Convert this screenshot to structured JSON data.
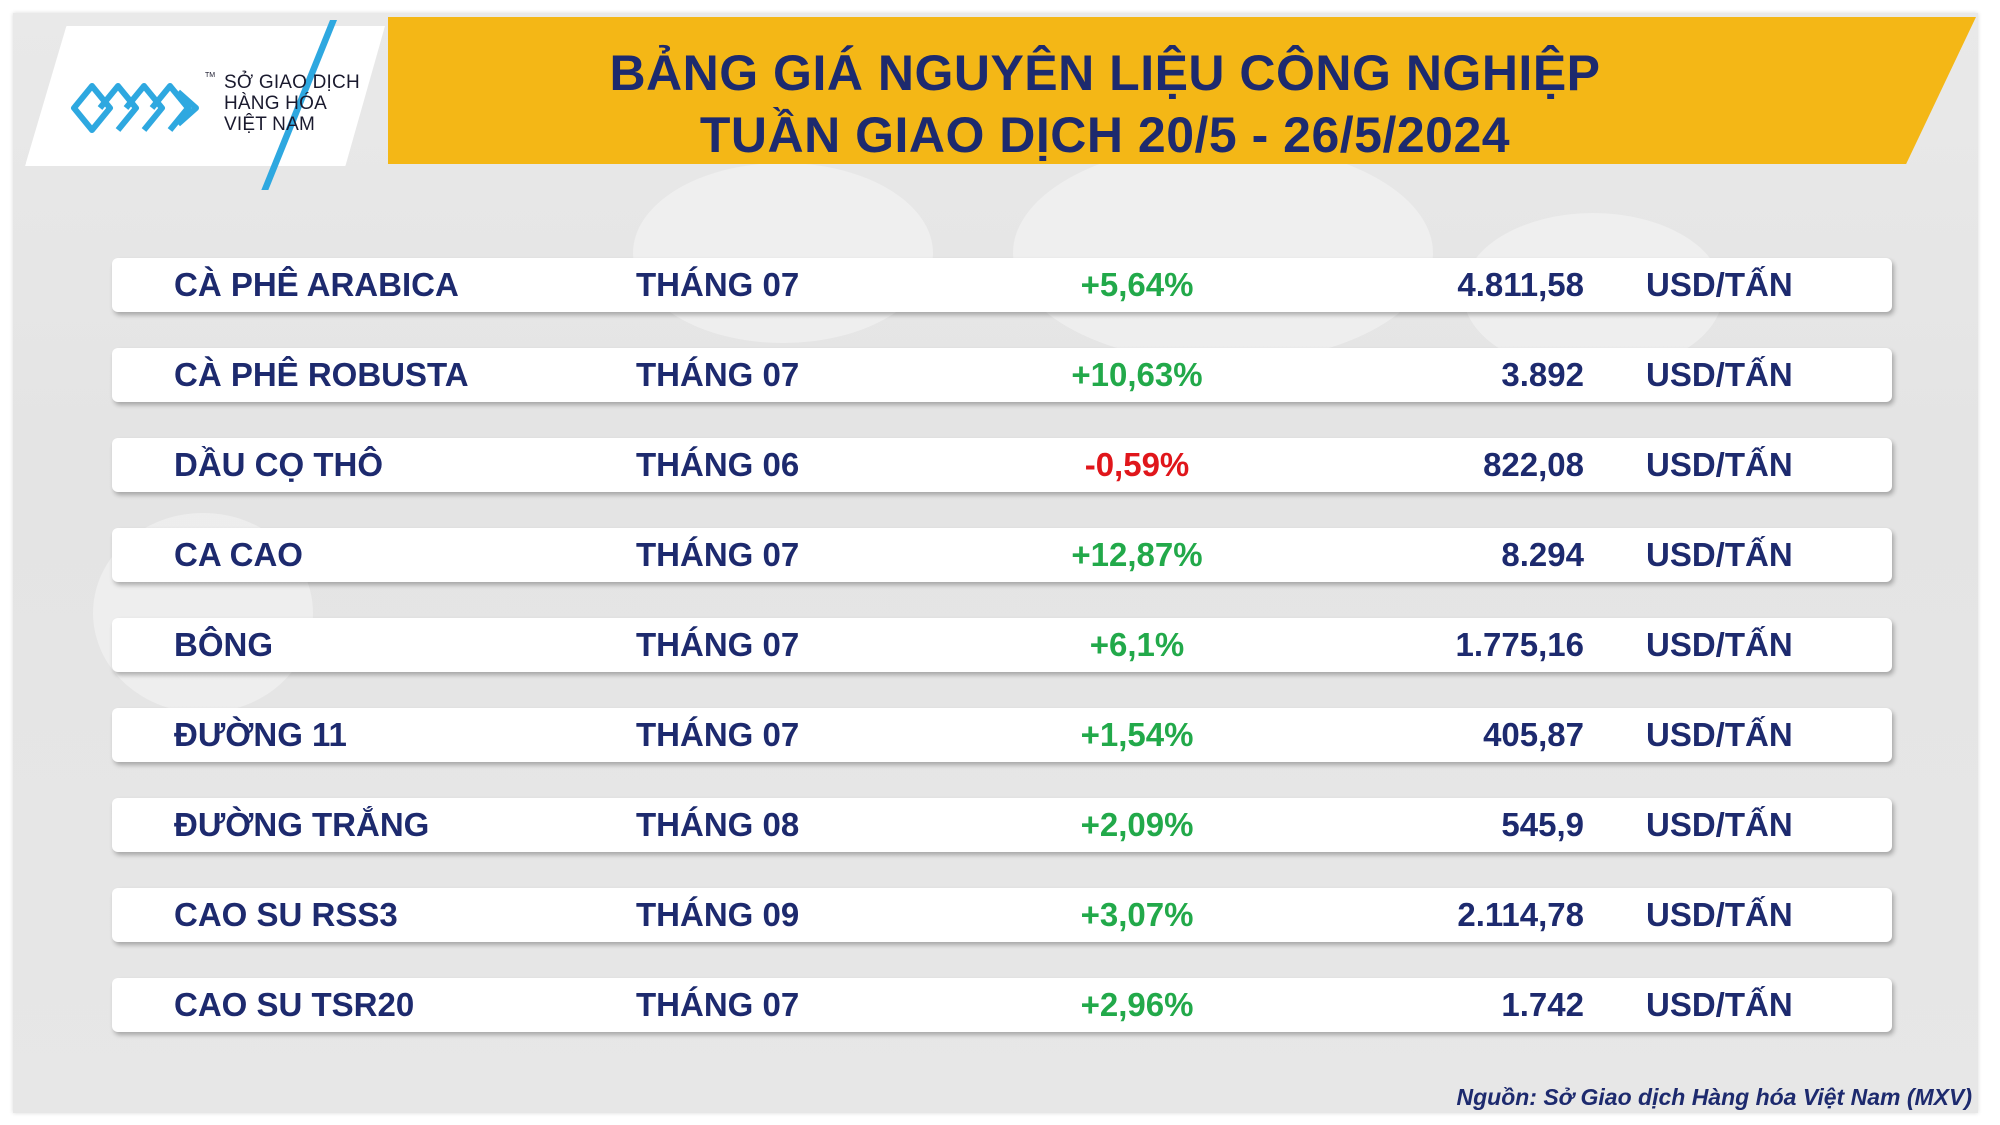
{
  "brand": {
    "logo_lines": [
      "SỞ GIAO DỊCH",
      "HÀNG HÓA",
      "VIỆT NAM"
    ],
    "trademark": "TM",
    "accent_color": "#2ea8e0"
  },
  "header": {
    "title_line1": "BẢNG GIÁ NGUYÊN LIỆU CÔNG NGHIỆP",
    "title_line2": "TUẦN GIAO DỊCH 20/5 - 26/5/2024",
    "banner_color": "#f4b716",
    "title_color": "#1d2a6e"
  },
  "table": {
    "rows": [
      {
        "commodity": "CÀ PHÊ ARABICA",
        "contract": "THÁNG 07",
        "change": "+5,64%",
        "direction": "up",
        "price": "4.811,58",
        "unit": "USD/TẤN"
      },
      {
        "commodity": "CÀ PHÊ ROBUSTA",
        "contract": "THÁNG 07",
        "change": "+10,63%",
        "direction": "up",
        "price": "3.892",
        "unit": "USD/TẤN"
      },
      {
        "commodity": "DẦU CỌ THÔ",
        "contract": "THÁNG 06",
        "change": "-0,59%",
        "direction": "down",
        "price": "822,08",
        "unit": "USD/TẤN"
      },
      {
        "commodity": "CA CAO",
        "contract": "THÁNG 07",
        "change": "+12,87%",
        "direction": "up",
        "price": "8.294",
        "unit": "USD/TẤN"
      },
      {
        "commodity": "BÔNG",
        "contract": "THÁNG 07",
        "change": "+6,1%",
        "direction": "up",
        "price": "1.775,16",
        "unit": "USD/TẤN"
      },
      {
        "commodity": "ĐƯỜNG 11",
        "contract": "THÁNG 07",
        "change": "+1,54%",
        "direction": "up",
        "price": "405,87",
        "unit": "USD/TẤN"
      },
      {
        "commodity": "ĐƯỜNG TRẮNG",
        "contract": "THÁNG 08",
        "change": "+2,09%",
        "direction": "up",
        "price": "545,9",
        "unit": "USD/TẤN"
      },
      {
        "commodity": "CAO SU RSS3",
        "contract": "THÁNG 09",
        "change": "+3,07%",
        "direction": "up",
        "price": "2.114,78",
        "unit": "USD/TẤN"
      },
      {
        "commodity": "CAO SU TSR20",
        "contract": "THÁNG 07",
        "change": "+2,96%",
        "direction": "up",
        "price": "1.742",
        "unit": "USD/TẤN"
      }
    ],
    "positive_color": "#22a94a",
    "negative_color": "#e0161b"
  },
  "footer": {
    "source": "Nguồn: Sở Giao dịch Hàng hóa Việt Nam (MXV)"
  }
}
